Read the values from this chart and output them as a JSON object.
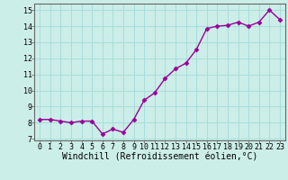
{
  "x": [
    0,
    1,
    2,
    3,
    4,
    5,
    6,
    7,
    8,
    9,
    10,
    11,
    12,
    13,
    14,
    15,
    16,
    17,
    18,
    19,
    20,
    21,
    22,
    23
  ],
  "y": [
    8.2,
    8.2,
    8.1,
    8.0,
    8.1,
    8.1,
    7.3,
    7.6,
    7.4,
    8.2,
    9.4,
    9.85,
    10.75,
    11.35,
    11.7,
    12.55,
    13.85,
    14.0,
    14.05,
    14.25,
    14.0,
    14.25,
    15.0,
    14.4
  ],
  "line_color": "#990099",
  "marker": "D",
  "markersize": 2.5,
  "linewidth": 1.0,
  "bg_color": "#cceee8",
  "grid_color": "#aadddd",
  "xlabel": "Windchill (Refroidissement éolien,°C)",
  "xlim": [
    -0.5,
    23.5
  ],
  "ylim": [
    6.9,
    15.4
  ],
  "yticks": [
    7,
    8,
    9,
    10,
    11,
    12,
    13,
    14,
    15
  ],
  "xtick_labels": [
    "0",
    "1",
    "2",
    "3",
    "4",
    "5",
    "6",
    "7",
    "8",
    "9",
    "10",
    "11",
    "12",
    "13",
    "14",
    "15",
    "16",
    "17",
    "18",
    "19",
    "20",
    "21",
    "22",
    "23"
  ],
  "tick_fontsize": 6,
  "xlabel_fontsize": 7
}
